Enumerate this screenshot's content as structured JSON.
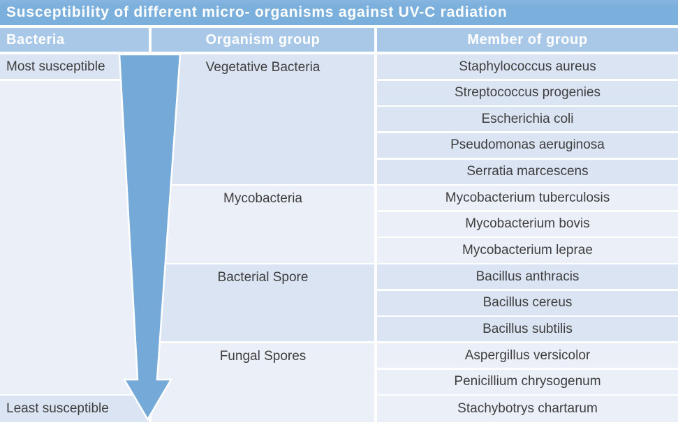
{
  "title": "Susceptibility of different micro- organisms against UV-C radiation",
  "header": {
    "bacteria": "Bacteria",
    "organism_group": "Organism group",
    "member_of_group": "Member of group"
  },
  "susceptibility": {
    "most": "Most susceptible",
    "least": "Least susceptible"
  },
  "arrow": {
    "meaning": "susceptibility decreasing from top to bottom",
    "direction": "down"
  },
  "groups": [
    {
      "label": "Vegetative Bacteria",
      "members": [
        "Staphylococcus aureus",
        "Streptococcus progenies",
        "Escherichia coli",
        "Pseudomonas aeruginosa",
        "Serratia marcescens"
      ]
    },
    {
      "label": "Mycobacteria",
      "members": [
        "Mycobacterium tuberculosis",
        "Mycobacterium bovis",
        "Mycobacterium leprae"
      ]
    },
    {
      "label": "Bacterial Spore",
      "members": [
        "Bacillus anthracis",
        "Bacillus cereus",
        "Bacillus subtilis"
      ]
    },
    {
      "label": "Fungal Spores",
      "members": [
        "Aspergillus versicolor",
        "Penicillium chrysogenum",
        "Stachybotrys chartarum"
      ]
    }
  ],
  "colors": {
    "title_bar": "#7bafdc",
    "header_bg": "#a9c8e8",
    "band_dark": "#dbe4f2",
    "band_light": "#ebeff8",
    "arrow": "#74a9d8",
    "body_text": "#3e3e3e",
    "header_text": "#ffffff"
  }
}
